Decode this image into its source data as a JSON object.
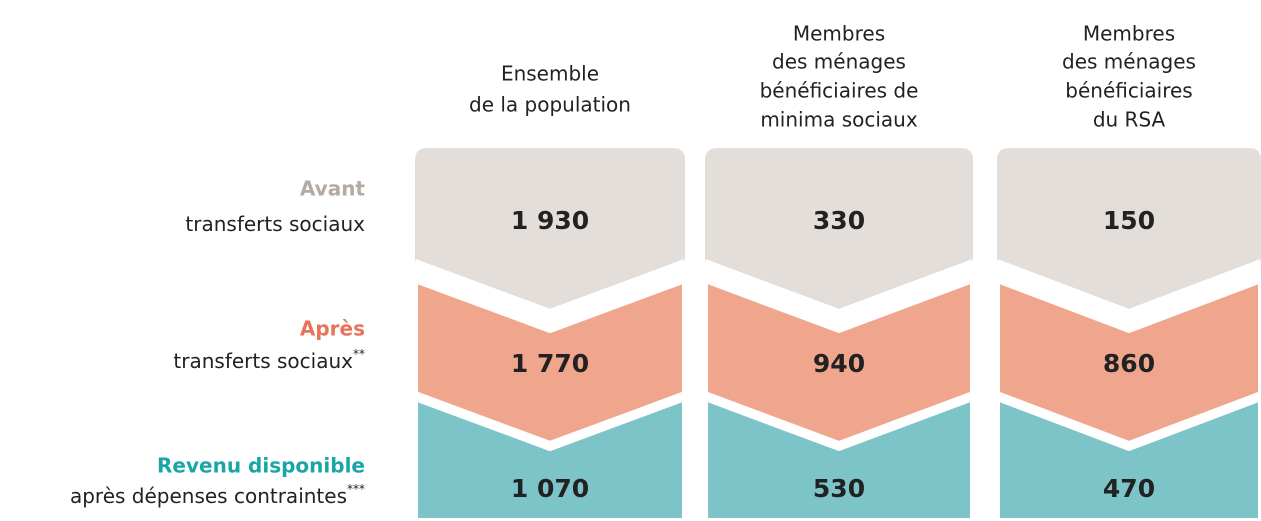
{
  "columns": [
    [
      "Ensemble",
      "de la population"
    ],
    [
      "Membres",
      "des ménages",
      "bénéficiaires de",
      "minima sociaux"
    ],
    [
      "Membres",
      "des ménages",
      "bénéficiaires",
      "du RSA"
    ]
  ],
  "rows": [
    {
      "title": "Avant",
      "subtitle": "transferts sociaux",
      "note": "",
      "values": [
        "1 930",
        "330",
        "150"
      ]
    },
    {
      "title": "Après",
      "subtitle": "transferts sociaux",
      "note": "**",
      "values": [
        "1 770",
        "940",
        "860"
      ]
    },
    {
      "title": "Revenu disponible",
      "subtitle": "après dépenses contraintes",
      "note": "***",
      "values": [
        "1 070",
        "530",
        "470"
      ]
    }
  ]
}
